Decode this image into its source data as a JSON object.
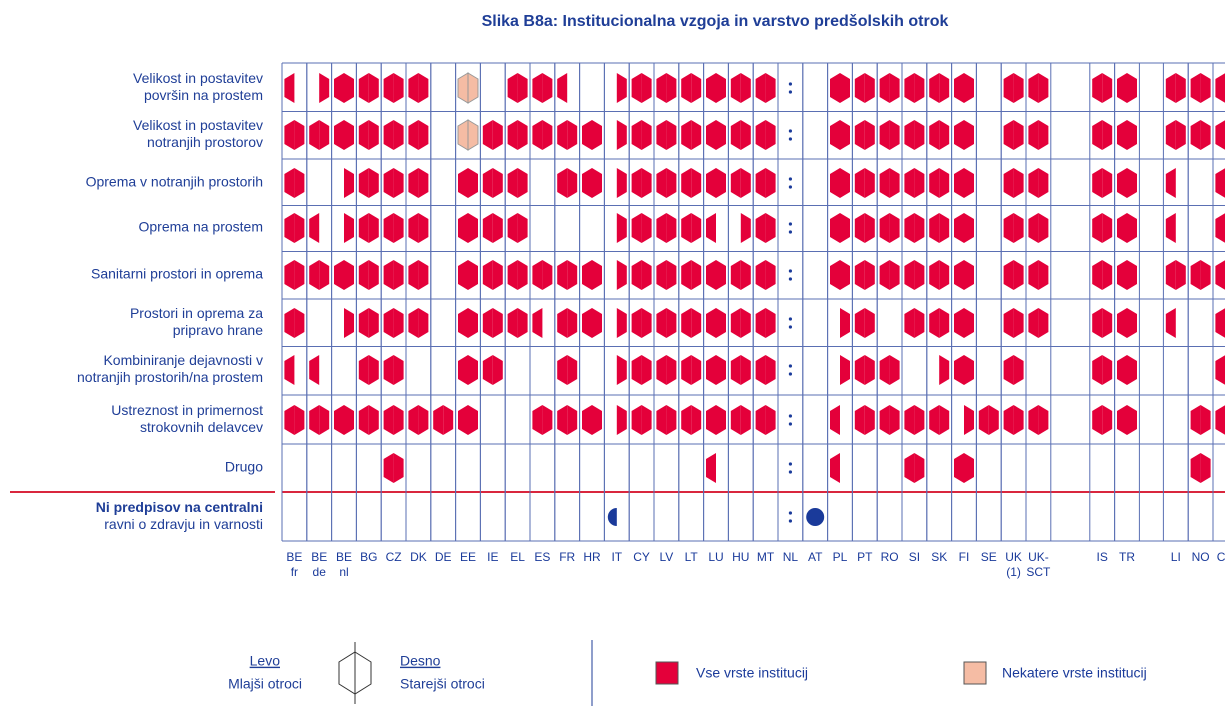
{
  "chart_data": {
    "type": "matrix",
    "title": "Slika B8a: Institucionalna vzgoja in varstvo predšolskih otrok",
    "columns": [
      [
        "BE",
        "fr"
      ],
      [
        "BE",
        "de"
      ],
      [
        "BE",
        "nl"
      ],
      [
        "BG"
      ],
      [
        "CZ"
      ],
      [
        "DK"
      ],
      [
        "DE"
      ],
      [
        "EE"
      ],
      [
        "IE"
      ],
      [
        "EL"
      ],
      [
        "ES"
      ],
      [
        "FR"
      ],
      [
        "HR"
      ],
      [
        "IT"
      ],
      [
        "CY"
      ],
      [
        "LV"
      ],
      [
        "LT"
      ],
      [
        "LU"
      ],
      [
        "HU"
      ],
      [
        "MT"
      ],
      [
        "NL"
      ],
      [
        "AT"
      ],
      [
        "PL"
      ],
      [
        "PT"
      ],
      [
        "RO"
      ],
      [
        "SI"
      ],
      [
        "SK"
      ],
      [
        "FI"
      ],
      [
        "SE"
      ],
      [
        "UK",
        "(1)"
      ],
      [
        "UK-",
        "SCT"
      ],
      [
        "IS"
      ],
      [
        "TR"
      ],
      [
        "LI"
      ],
      [
        "NO"
      ],
      [
        "CH"
      ]
    ],
    "rows": [
      {
        "label": [
          "Velikost in postavitev",
          "površin na prostem"
        ],
        "cells": [
          "l",
          "r",
          "b",
          "b",
          "b",
          "b",
          "-",
          "p",
          "-",
          "b",
          "b",
          "l",
          "-",
          "r",
          "b",
          "b",
          "b",
          "b",
          "b",
          "b",
          ":",
          "-",
          "b",
          "b",
          "b",
          "b",
          "b",
          "b",
          "-",
          "b",
          "b",
          "b",
          "b",
          "b",
          "b",
          "l"
        ]
      },
      {
        "label": [
          "Velikost in postavitev",
          "notranjih prostorov"
        ],
        "cells": [
          "b",
          "b",
          "b",
          "b",
          "b",
          "b",
          "-",
          "p",
          "b",
          "b",
          "b",
          "b",
          "b",
          "r",
          "b",
          "b",
          "b",
          "b",
          "b",
          "b",
          ":",
          "-",
          "b",
          "b",
          "b",
          "b",
          "b",
          "b",
          "-",
          "b",
          "b",
          "b",
          "b",
          "b",
          "b",
          "b"
        ]
      },
      {
        "label": [
          "Oprema v notranjih prostorih"
        ],
        "cells": [
          "b",
          "-",
          "r",
          "b",
          "b",
          "b",
          "-",
          "b",
          "b",
          "b",
          "-",
          "b",
          "b",
          "r",
          "b",
          "b",
          "b",
          "b",
          "b",
          "b",
          ":",
          "-",
          "b",
          "b",
          "b",
          "b",
          "b",
          "b",
          "-",
          "b",
          "b",
          "b",
          "b",
          "l",
          "-",
          "l"
        ]
      },
      {
        "label": [
          "Oprema na prostem"
        ],
        "cells": [
          "b",
          "l",
          "r",
          "b",
          "b",
          "b",
          "-",
          "b",
          "b",
          "b",
          "-",
          "-",
          "-",
          "r",
          "b",
          "b",
          "b",
          "l",
          "r",
          "b",
          ":",
          "-",
          "b",
          "b",
          "b",
          "b",
          "b",
          "b",
          "-",
          "b",
          "b",
          "b",
          "b",
          "l",
          "-",
          "l"
        ]
      },
      {
        "label": [
          "Sanitarni prostori in oprema"
        ],
        "cells": [
          "b",
          "b",
          "b",
          "b",
          "b",
          "b",
          "-",
          "b",
          "b",
          "b",
          "b",
          "b",
          "b",
          "r",
          "b",
          "b",
          "b",
          "b",
          "b",
          "b",
          ":",
          "-",
          "b",
          "b",
          "b",
          "b",
          "b",
          "b",
          "-",
          "b",
          "b",
          "b",
          "b",
          "b",
          "b",
          "b"
        ]
      },
      {
        "label": [
          "Prostori in oprema za",
          "pripravo hrane"
        ],
        "cells": [
          "b",
          "-",
          "r",
          "b",
          "b",
          "b",
          "-",
          "b",
          "b",
          "b",
          "l",
          "b",
          "b",
          "r",
          "b",
          "b",
          "b",
          "b",
          "b",
          "b",
          ":",
          "-",
          "r",
          "b",
          "-",
          "b",
          "b",
          "b",
          "-",
          "b",
          "b",
          "b",
          "b",
          "l",
          "-",
          "l"
        ]
      },
      {
        "label": [
          "Kombiniranje dejavnosti v",
          "notranjih prostorih/na prostem"
        ],
        "cells": [
          "l",
          "l",
          "-",
          "b",
          "b",
          "-",
          "-",
          "b",
          "b",
          "-",
          "-",
          "b",
          "-",
          "r",
          "b",
          "b",
          "b",
          "b",
          "b",
          "b",
          ":",
          "-",
          "r",
          "b",
          "b",
          "-",
          "r",
          "b",
          "-",
          "b",
          "-",
          "b",
          "b",
          "-",
          "-",
          "l"
        ]
      },
      {
        "label": [
          "Ustreznost in primernost",
          "strokovnih delavcev"
        ],
        "cells": [
          "b",
          "b",
          "b",
          "b",
          "b",
          "b",
          "b",
          "b",
          "-",
          "-",
          "b",
          "b",
          "b",
          "r",
          "b",
          "b",
          "b",
          "b",
          "b",
          "b",
          ":",
          "-",
          "l",
          "b",
          "b",
          "b",
          "b",
          "r",
          "b",
          "b",
          "b",
          "b",
          "b",
          "-",
          "b",
          "b"
        ]
      },
      {
        "label": [
          "Drugo"
        ],
        "cells": [
          "-",
          "-",
          "-",
          "-",
          "b",
          "-",
          "-",
          "-",
          "-",
          "-",
          "-",
          "-",
          "-",
          "-",
          "-",
          "-",
          "-",
          "l",
          "-",
          "-",
          ":",
          "-",
          "l",
          "-",
          "-",
          "b",
          "-",
          "b",
          "-",
          "-",
          "-",
          "-",
          "-",
          "-",
          "b",
          "-"
        ]
      },
      {
        "label": [
          "Ni predpisov na centralni",
          "ravni o zdravju in varnosti"
        ],
        "cells": [
          "-",
          "-",
          "-",
          "-",
          "-",
          "-",
          "-",
          "-",
          "-",
          "-",
          "-",
          "-",
          "-",
          "l",
          "-",
          "-",
          "-",
          "-",
          "-",
          "-",
          ":",
          "b",
          "-",
          "-",
          "-",
          "-",
          "-",
          "-",
          "-",
          "-",
          "-",
          "-",
          "-",
          "-",
          "-",
          "-"
        ]
      }
    ],
    "colors": {
      "all": "#e4003a",
      "some": "#f5bca4",
      "none_row": "#1a3a9a"
    },
    "legend": {
      "left": "Levo",
      "left_note": "Mlajši otroci",
      "right": "Desno",
      "right_note": "Starejši otroci",
      "all": "Vse vrste institucij",
      "some": "Nekatere vrste institucij"
    }
  }
}
